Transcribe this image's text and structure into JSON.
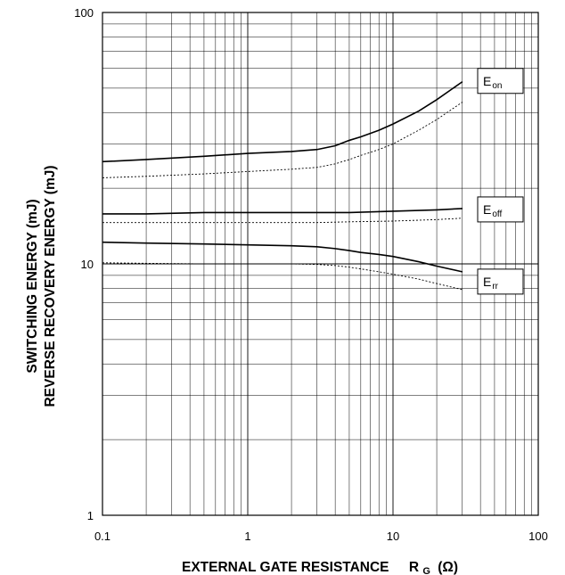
{
  "chart_data": {
    "type": "line",
    "x_scale": "log",
    "y_scale": "log",
    "xlim": [
      0.1,
      100
    ],
    "ylim": [
      1,
      100
    ],
    "grid": true,
    "x_ticks": [
      "0.1",
      "1",
      "10",
      "100"
    ],
    "y_ticks": [
      "1",
      "10",
      "100"
    ],
    "xlabel": {
      "main": "EXTERNAL GATE RESISTANCE",
      "symbol": "R",
      "sub": "G",
      "unit": "(Ω)"
    },
    "ylabel": {
      "line1": "SWITCHING ENERGY (mJ)",
      "line2": "REVERSE RECOVERY ENERGY (mJ)"
    },
    "series": [
      {
        "name": "Eon",
        "label_main": "E",
        "label_sub": "on",
        "style": "solid",
        "color": "#000000",
        "x": [
          0.1,
          0.2,
          0.5,
          1,
          2,
          3,
          4,
          5,
          6,
          8,
          10,
          15,
          20,
          30
        ],
        "y": [
          25.5,
          26,
          26.8,
          27.5,
          28,
          28.5,
          29.5,
          31,
          32,
          34,
          36,
          40.5,
          45,
          53
        ]
      },
      {
        "name": "Eon",
        "style": "dotted",
        "color": "#000000",
        "x": [
          0.1,
          0.2,
          0.5,
          1,
          2,
          3,
          4,
          5,
          6,
          8,
          10,
          15,
          20,
          30
        ],
        "y": [
          22,
          22.3,
          22.8,
          23.3,
          23.8,
          24.2,
          25,
          26,
          27,
          28.5,
          30,
          34,
          37.5,
          44
        ]
      },
      {
        "name": "Eoff",
        "label_main": "E",
        "label_sub": "off",
        "style": "solid",
        "color": "#000000",
        "x": [
          0.1,
          0.2,
          0.5,
          1,
          2,
          3,
          5,
          10,
          20,
          30
        ],
        "y": [
          15.8,
          15.8,
          16,
          16,
          16,
          16,
          16,
          16.2,
          16.4,
          16.6
        ]
      },
      {
        "name": "Eoff",
        "style": "dotted",
        "color": "#000000",
        "x": [
          0.1,
          0.2,
          0.5,
          1,
          2,
          3,
          5,
          10,
          20,
          30
        ],
        "y": [
          14.6,
          14.6,
          14.6,
          14.6,
          14.6,
          14.6,
          14.7,
          14.8,
          15,
          15.2
        ]
      },
      {
        "name": "Err",
        "label_main": "E",
        "label_sub": "rr",
        "style": "solid",
        "color": "#000000",
        "x": [
          0.1,
          0.2,
          0.5,
          1,
          2,
          3,
          4,
          5,
          6,
          8,
          10,
          15,
          20,
          30
        ],
        "y": [
          12.2,
          12.1,
          12,
          11.9,
          11.8,
          11.7,
          11.5,
          11.3,
          11.1,
          10.9,
          10.7,
          10.2,
          9.8,
          9.3
        ]
      },
      {
        "name": "Err",
        "style": "dotted",
        "color": "#000000",
        "x": [
          0.1,
          0.2,
          0.5,
          1,
          2,
          3,
          4,
          5,
          6,
          8,
          10,
          15,
          20,
          30
        ],
        "y": [
          10.1,
          10.05,
          10,
          10,
          10,
          9.95,
          9.85,
          9.7,
          9.55,
          9.3,
          9.1,
          8.7,
          8.35,
          7.9
        ]
      }
    ],
    "legend_placement": "labels-at-right-end-of-curves"
  }
}
